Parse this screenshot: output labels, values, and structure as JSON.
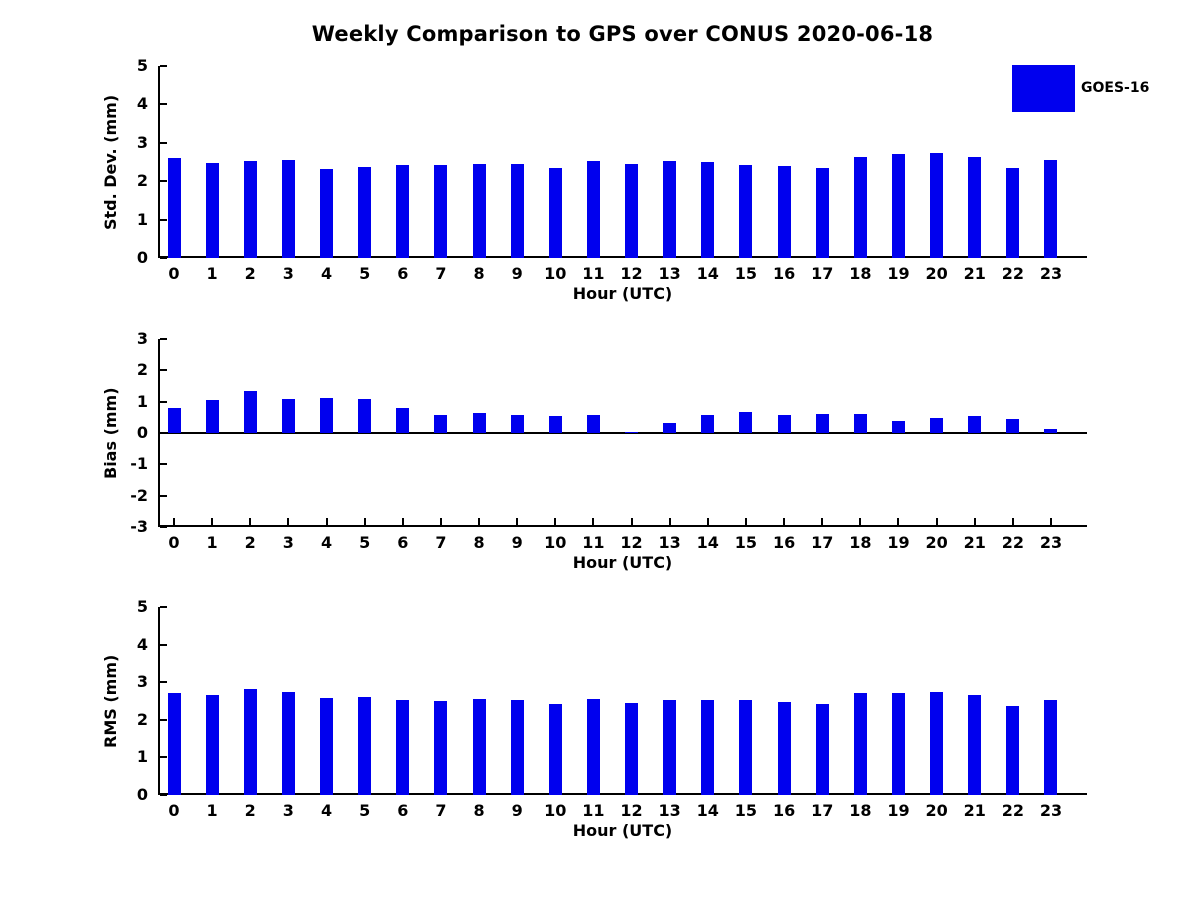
{
  "figure": {
    "title": "Weekly Comparison to GPS over CONUS 2020-06-18",
    "legend": {
      "label": "GOES-16",
      "swatch_color": "#0000ee",
      "position": "top-right"
    }
  },
  "colors": {
    "bar": "#0000ee",
    "axis": "#000000",
    "text": "#000000",
    "background": "#ffffff"
  },
  "chart_data": [
    {
      "type": "bar",
      "panel": "std_dev",
      "series_name": "GOES-16",
      "ylabel": "Std. Dev. (mm)",
      "xlabel": "Hour (UTC)",
      "categories": [
        "0",
        "1",
        "2",
        "3",
        "4",
        "5",
        "6",
        "7",
        "8",
        "9",
        "10",
        "11",
        "12",
        "13",
        "14",
        "15",
        "16",
        "17",
        "18",
        "19",
        "20",
        "21",
        "22",
        "23"
      ],
      "values": [
        2.6,
        2.48,
        2.52,
        2.54,
        2.33,
        2.38,
        2.43,
        2.43,
        2.45,
        2.45,
        2.35,
        2.52,
        2.45,
        2.52,
        2.5,
        2.43,
        2.4,
        2.35,
        2.64,
        2.7,
        2.73,
        2.64,
        2.34,
        2.56
      ],
      "ylim": [
        0,
        5
      ],
      "yticks": [
        0,
        1,
        2,
        3,
        4,
        5
      ],
      "grid": false
    },
    {
      "type": "bar",
      "panel": "bias",
      "series_name": "GOES-16",
      "ylabel": "Bias (mm)",
      "xlabel": "Hour (UTC)",
      "categories": [
        "0",
        "1",
        "2",
        "3",
        "4",
        "5",
        "6",
        "7",
        "8",
        "9",
        "10",
        "11",
        "12",
        "13",
        "14",
        "15",
        "16",
        "17",
        "18",
        "19",
        "20",
        "21",
        "22",
        "23"
      ],
      "values": [
        0.8,
        1.05,
        1.35,
        1.08,
        1.12,
        1.08,
        0.8,
        0.58,
        0.65,
        0.58,
        0.53,
        0.58,
        0.04,
        0.33,
        0.57,
        0.68,
        0.58,
        0.62,
        0.62,
        0.37,
        0.47,
        0.55,
        0.45,
        0.12
      ],
      "ylim": [
        -3,
        3
      ],
      "yticks": [
        -3,
        -2,
        -1,
        0,
        1,
        2,
        3
      ],
      "grid": false
    },
    {
      "type": "bar",
      "panel": "rms",
      "series_name": "GOES-16",
      "ylabel": "RMS (mm)",
      "xlabel": "Hour (UTC)",
      "categories": [
        "0",
        "1",
        "2",
        "3",
        "4",
        "5",
        "6",
        "7",
        "8",
        "9",
        "10",
        "11",
        "12",
        "13",
        "14",
        "15",
        "16",
        "17",
        "18",
        "19",
        "20",
        "21",
        "22",
        "23"
      ],
      "values": [
        2.7,
        2.67,
        2.82,
        2.73,
        2.57,
        2.6,
        2.54,
        2.5,
        2.55,
        2.52,
        2.41,
        2.55,
        2.46,
        2.52,
        2.53,
        2.53,
        2.47,
        2.41,
        2.7,
        2.7,
        2.75,
        2.67,
        2.38,
        2.54
      ],
      "ylim": [
        0,
        5
      ],
      "yticks": [
        0,
        1,
        2,
        3,
        4,
        5
      ],
      "grid": false
    }
  ]
}
